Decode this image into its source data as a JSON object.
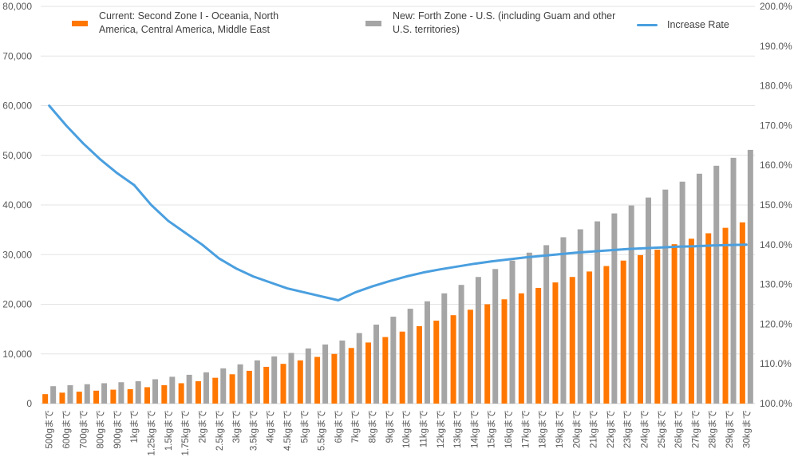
{
  "chart_data": {
    "type": "bar",
    "title": "",
    "xlabel": "",
    "ylabel": "",
    "categories": [
      "500gまで",
      "600gまで",
      "700gまで",
      "800gまで",
      "900gまで",
      "1kgまで",
      "1.25kgまで",
      "1.5kgまで",
      "1.75kgまで",
      "2kgまで",
      "2.5kgまで",
      "3kgまで",
      "3.5kgまで",
      "4kgまで",
      "4.5kgまで",
      "5kgまで",
      "5.5kgまで",
      "6kgまで",
      "7kgまで",
      "8kgまで",
      "9kgまで",
      "10kgまで",
      "11kgまで",
      "12kgまで",
      "13kgまで",
      "14kgまで",
      "15kgまで",
      "16kgまで",
      "17kgまで",
      "18kgまで",
      "19kgまで",
      "20kgまで",
      "21kgまで",
      "22kgまで",
      "23kgまで",
      "24kgまで",
      "25kgまで",
      "26kgまで",
      "27kgまで",
      "28kgまで",
      "29kgまで",
      "30kgまで"
    ],
    "series": [
      {
        "name": "Current: Second Zone I - Oceania, North America, Central America, Middle East",
        "type": "bar",
        "axis": "left",
        "color": "#FF7700",
        "values": [
          1900,
          2200,
          2400,
          2600,
          2800,
          2900,
          3300,
          3700,
          4100,
          4500,
          5200,
          5900,
          6600,
          7400,
          8000,
          8700,
          9400,
          10000,
          11200,
          12300,
          13400,
          14500,
          15600,
          16700,
          17800,
          18900,
          20000,
          21000,
          22200,
          23300,
          24400,
          25500,
          26600,
          27700,
          28800,
          29900,
          31000,
          32100,
          33200,
          34300,
          35400,
          36500
        ]
      },
      {
        "name": "New: Forth Zone - U.S. (including Guam and other U.S. territories)",
        "type": "bar",
        "axis": "left",
        "color": "#A5A5A5",
        "values": [
          3500,
          3700,
          3900,
          4100,
          4300,
          4500,
          4900,
          5400,
          5800,
          6300,
          7100,
          7900,
          8700,
          9500,
          10200,
          11100,
          11900,
          12700,
          14200,
          15900,
          17500,
          19100,
          20600,
          22200,
          23900,
          25500,
          27100,
          28800,
          30400,
          31900,
          33500,
          35100,
          36700,
          38300,
          39900,
          41500,
          43100,
          44700,
          46300,
          47900,
          49500,
          51100
        ]
      },
      {
        "name": "Increase Rate",
        "type": "line",
        "axis": "right",
        "color": "#4A9FDF",
        "values": [
          175,
          170,
          165.5,
          161.5,
          158,
          155,
          150,
          146,
          143,
          140,
          136.5,
          134,
          132,
          130.5,
          129,
          128,
          127,
          126,
          128,
          129.5,
          130.8,
          132,
          133,
          133.8,
          134.5,
          135.2,
          135.8,
          136.3,
          136.8,
          137.2,
          137.6,
          138,
          138.3,
          138.6,
          138.9,
          139.1,
          139.3,
          139.5,
          139.6,
          139.8,
          139.9,
          140
        ]
      }
    ],
    "y_left": {
      "ylim": [
        0,
        80000
      ],
      "ticks": [
        "0",
        "10,000",
        "20,000",
        "30,000",
        "40,000",
        "50,000",
        "60,000",
        "70,000",
        "80,000"
      ]
    },
    "y_right": {
      "ylim": [
        100,
        200
      ],
      "ticks": [
        "100.0%",
        "110.0%",
        "120.0%",
        "130.0%",
        "140.0%",
        "150.0%",
        "160.0%",
        "170.0%",
        "180.0%",
        "190.0%",
        "200.0%"
      ]
    },
    "grid": true,
    "legend_position": "top"
  }
}
